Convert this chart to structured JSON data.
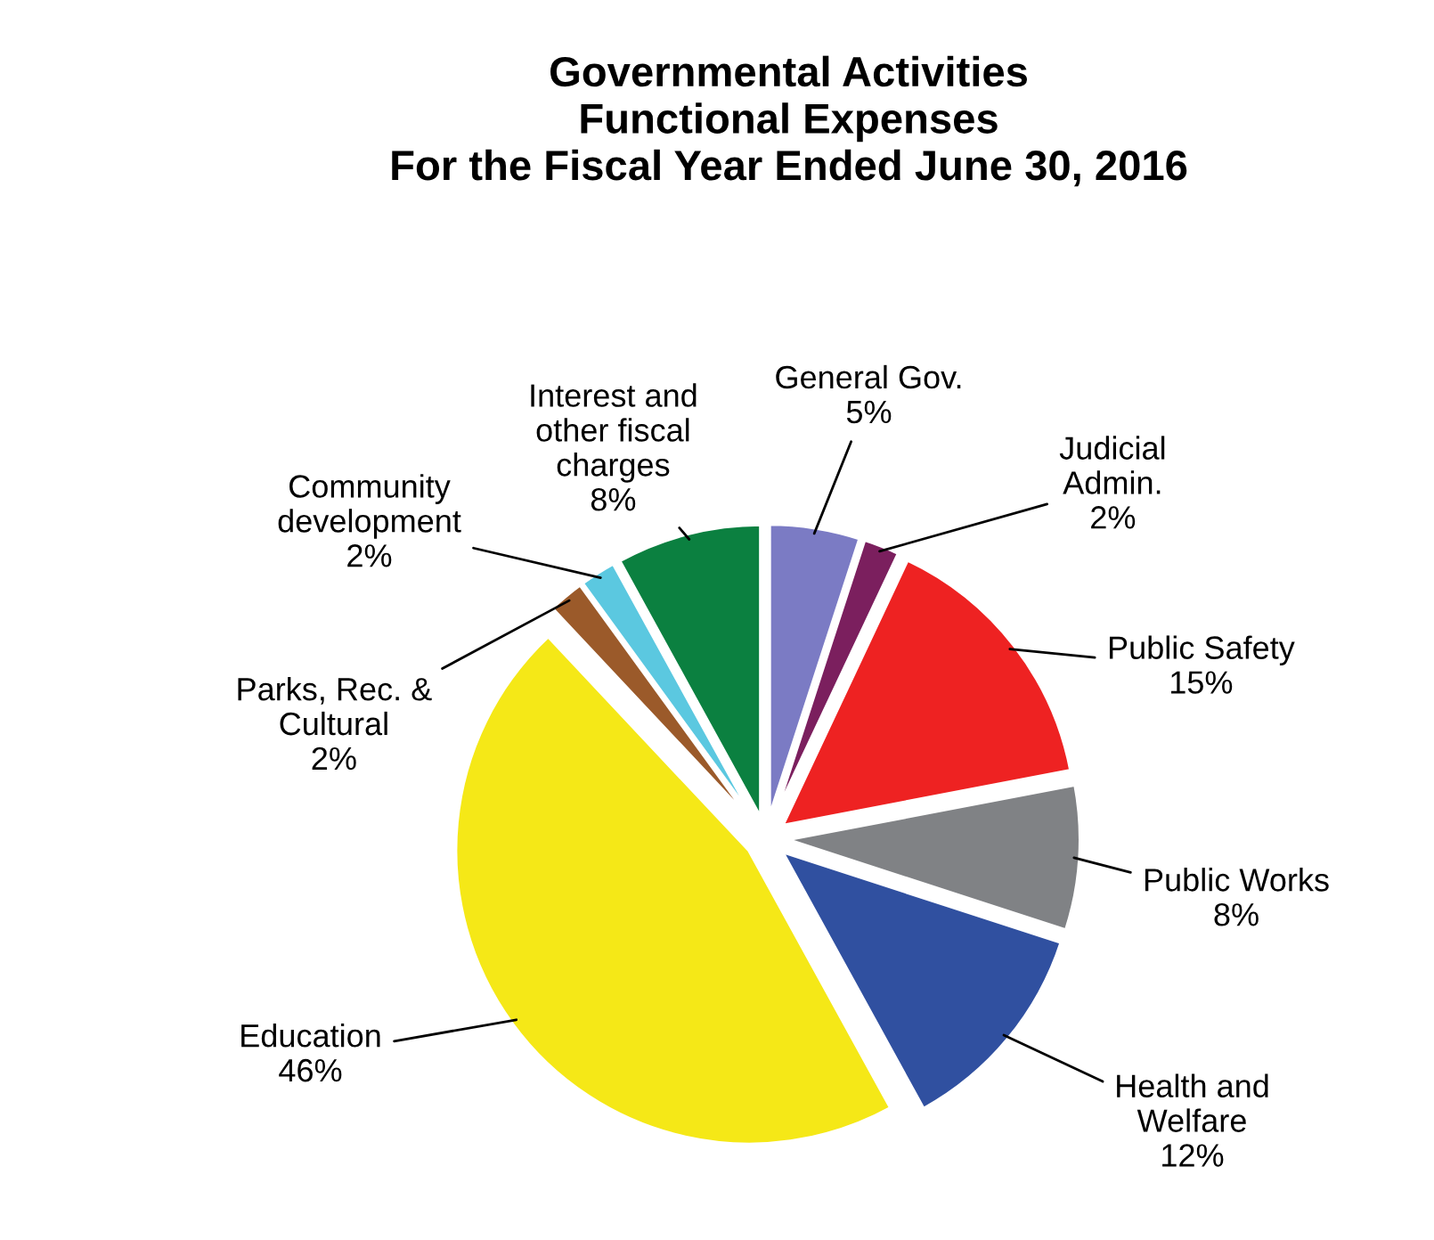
{
  "chart_data": {
    "type": "pie",
    "title": "Governmental Activities\nFunctional Expenses\nFor the Fiscal Year Ended June 30, 2016",
    "categories": [
      "General Gov.",
      "Judicial\nAdmin.",
      "Public Safety",
      "Public Works",
      "Health and\nWelfare",
      "Education",
      "Parks, Rec. &\nCultural",
      "Community\ndevelopment",
      "Interest and\nother fiscal\ncharges"
    ],
    "values": [
      5,
      2,
      15,
      8,
      12,
      46,
      2,
      2,
      8
    ],
    "value_labels": [
      "5%",
      "2%",
      "15%",
      "8%",
      "12%",
      "46%",
      "2%",
      "2%",
      "8%"
    ],
    "colors": [
      "#7b7bc4",
      "#7b1f5e",
      "#ee2222",
      "#808285",
      "#3050a0",
      "#f5e817",
      "#9b5a2a",
      "#5bc8e0",
      "#0b8040"
    ]
  }
}
